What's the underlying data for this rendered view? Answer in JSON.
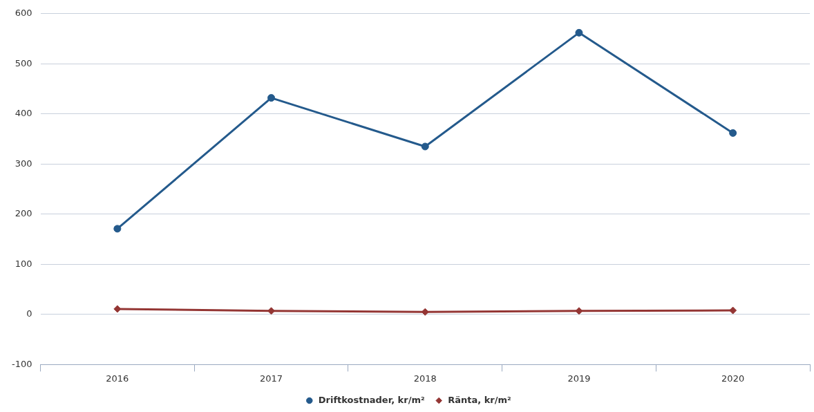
{
  "chart_data": {
    "type": "line",
    "categories": [
      "2016",
      "2017",
      "2018",
      "2019",
      "2020"
    ],
    "series": [
      {
        "name": "Driftkostnader, kr/m²",
        "color": "#245a8c",
        "values": [
          171,
          432,
          335,
          562,
          362
        ],
        "marker": "circle"
      },
      {
        "name": "Ränta, kr/m²",
        "color": "#943634",
        "values": [
          11,
          7,
          5,
          7,
          8
        ],
        "marker": "diamond"
      }
    ],
    "ylim": [
      -100,
      600
    ],
    "yticks": [
      -100,
      0,
      100,
      200,
      300,
      400,
      500,
      600
    ],
    "grid": "y",
    "legend": "bottom",
    "line_style": "solid"
  }
}
